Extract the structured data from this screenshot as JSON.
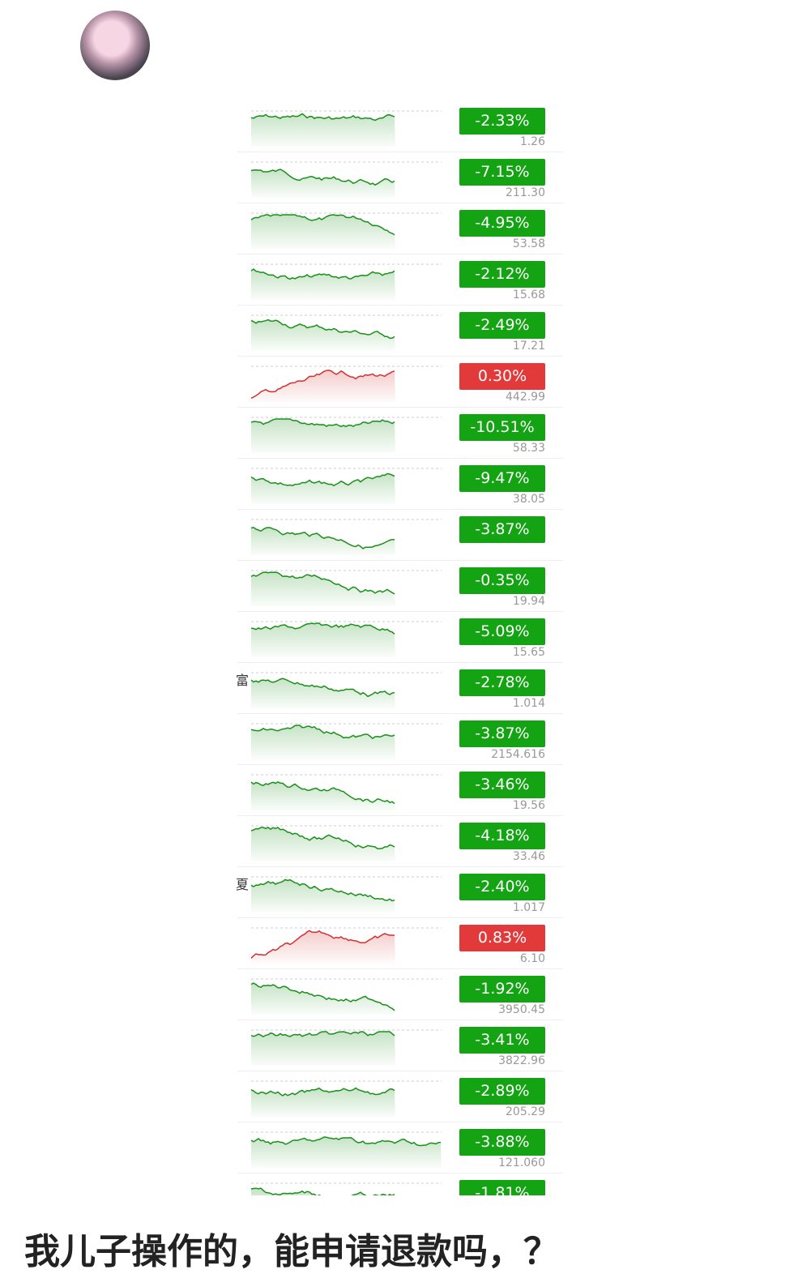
{
  "rows": [
    {
      "change": "-2.33%",
      "price": "1.26"
    },
    {
      "change": "-7.15%",
      "price": "211.30"
    },
    {
      "change": "-4.95%",
      "price": "53.58"
    },
    {
      "change": "-2.12%",
      "price": "15.68"
    },
    {
      "change": "-2.49%",
      "price": "17.21"
    },
    {
      "change": "0.30%",
      "price": "442.99"
    },
    {
      "change": "-10.51%",
      "price": "58.33"
    },
    {
      "change": "-9.47%",
      "price": "38.05"
    },
    {
      "change": "-3.87%"
    },
    {
      "change": "-0.35%",
      "price": "19.94"
    },
    {
      "change": "-5.09%",
      "price": "15.65"
    },
    {
      "change": "-2.78%",
      "price": "1.014",
      "side_label": "富"
    },
    {
      "change": "-3.87%",
      "price": "2154.616"
    },
    {
      "change": "-3.46%",
      "price": "19.56"
    },
    {
      "change": "-4.18%",
      "price": "33.46"
    },
    {
      "change": "-2.40%",
      "price": "1.017",
      "side_label": "夏"
    },
    {
      "change": "0.83%",
      "price": "6.10"
    },
    {
      "change": "-1.92%",
      "price": "3950.45"
    },
    {
      "change": "-3.41%",
      "price": "3822.96"
    },
    {
      "change": "-2.89%",
      "price": "205.29"
    },
    {
      "change": "-3.88%",
      "price": "121.060"
    },
    {
      "change": "-1.81%"
    }
  ],
  "caption": "我儿子操作的，能申请退款吗，？"
}
